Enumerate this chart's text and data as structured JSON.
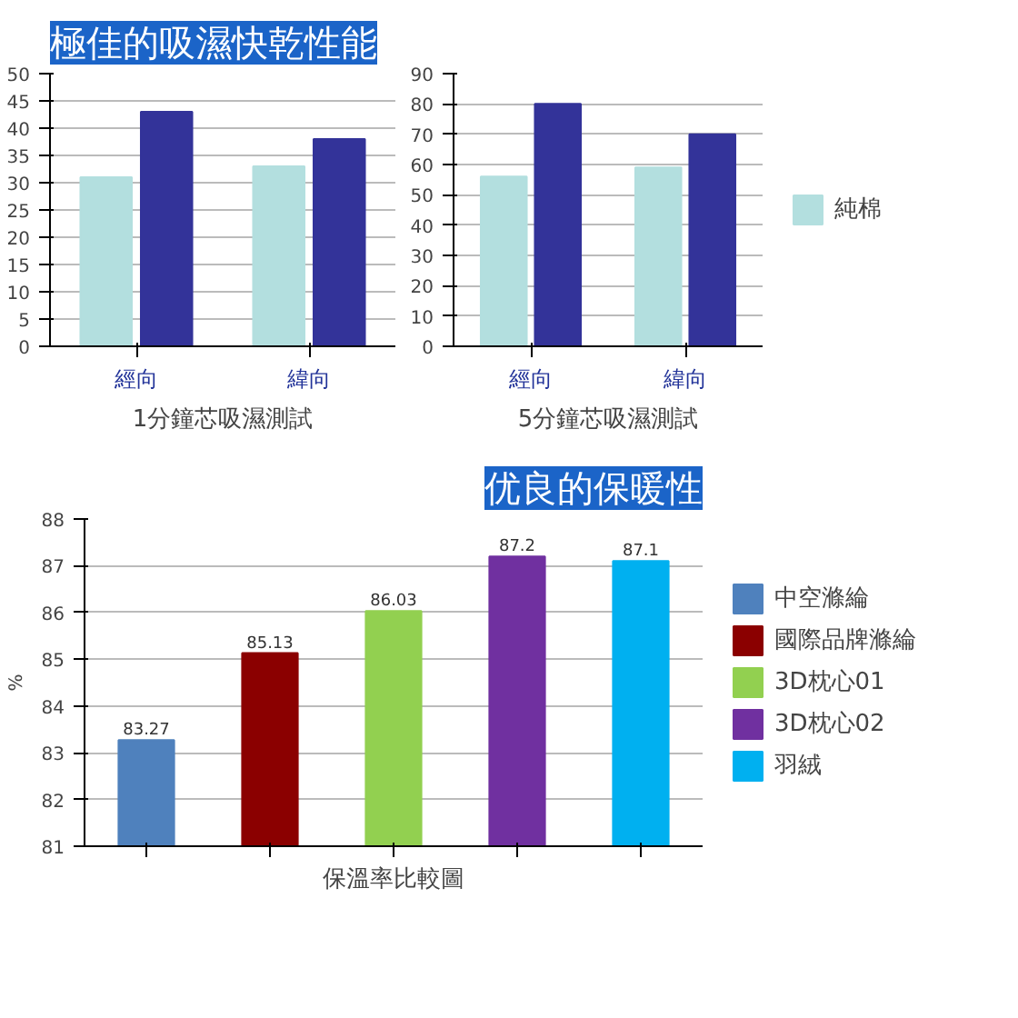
{
  "chart_data": [
    {
      "type": "bar",
      "title": "極佳的吸濕快乾性能",
      "xlabel": "1分鐘芯吸濕測試",
      "categories": [
        "經向",
        "緯向"
      ],
      "series": [
        {
          "color": "#b3dfdf",
          "values": [
            31,
            33
          ]
        },
        {
          "color": "#333399",
          "values": [
            43,
            38
          ]
        }
      ],
      "ylim": [
        0,
        50
      ],
      "yticks": [
        0,
        5,
        10,
        15,
        20,
        25,
        30,
        35,
        40,
        45,
        50
      ],
      "grid": "y"
    },
    {
      "type": "bar",
      "xlabel": "5分鐘芯吸濕測試",
      "categories": [
        "經向",
        "緯向"
      ],
      "series": [
        {
          "name": "純棉",
          "color": "#b3dfdf",
          "values": [
            56,
            59
          ]
        },
        {
          "color": "#333399",
          "values": [
            80,
            70
          ]
        }
      ],
      "ylim": [
        0,
        90
      ],
      "yticks": [
        0,
        10,
        20,
        30,
        40,
        50,
        60,
        70,
        80,
        90
      ],
      "grid": "y",
      "legend": "right"
    },
    {
      "type": "bar",
      "title": "优良的保暖性",
      "xlabel": "保溫率比較圖",
      "ylabel": "%",
      "categories": [
        null,
        null,
        null,
        null,
        null
      ],
      "series": [
        {
          "name": "中空滌綸",
          "color": "#4f81bd",
          "values": [
            83.27,
            null,
            null,
            null,
            null
          ]
        },
        {
          "name": "國際品牌滌綸",
          "color": "#8b0000",
          "values": [
            null,
            85.13,
            null,
            null,
            null
          ]
        },
        {
          "name": "3D枕心01",
          "color": "#92d050",
          "values": [
            null,
            null,
            86.03,
            null,
            null
          ]
        },
        {
          "name": "3D枕心02",
          "color": "#7030a0",
          "values": [
            null,
            null,
            null,
            87.2,
            null
          ]
        },
        {
          "name": "羽絨",
          "color": "#00b0f0",
          "values": [
            null,
            null,
            null,
            null,
            87.1
          ]
        }
      ],
      "ylim": [
        81,
        88
      ],
      "yticks": [
        81,
        82,
        83,
        84,
        85,
        86,
        87,
        88
      ],
      "grid": "y",
      "legend": "right",
      "data_labels": true
    }
  ]
}
